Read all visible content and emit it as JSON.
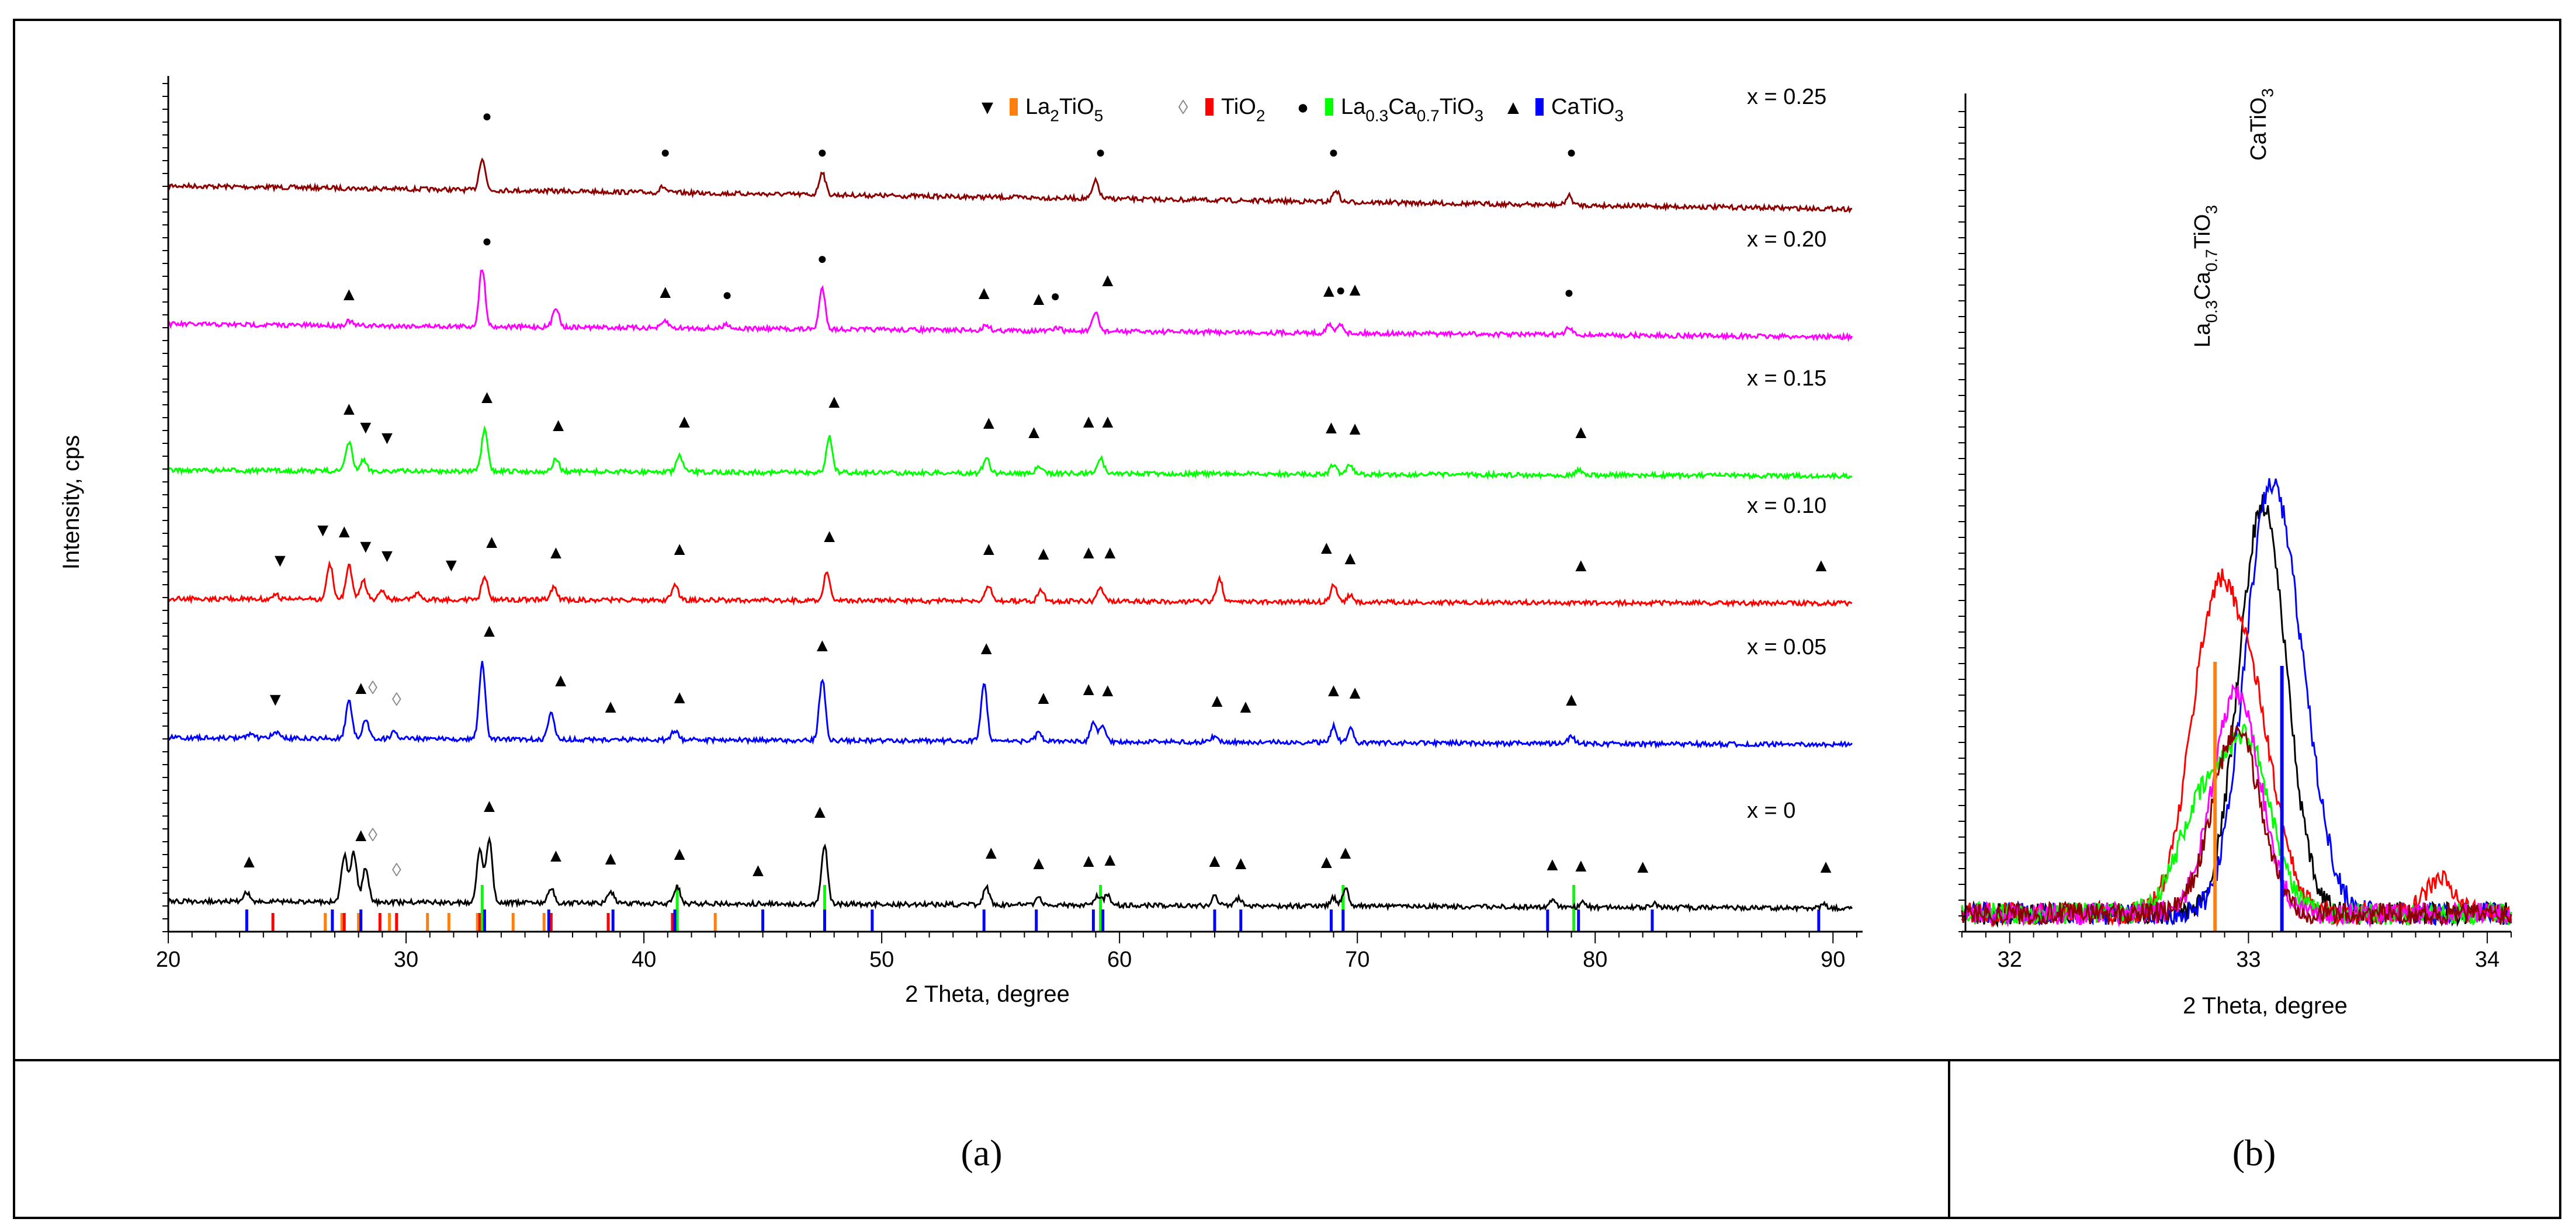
{
  "chart_data": [
    {
      "type": "line",
      "panel_caption": "(a)",
      "xlabel": "2 Theta, degree",
      "ylabel": "Intensity, cps",
      "xlim": [
        20,
        91
      ],
      "xticks": [
        20,
        30,
        40,
        50,
        60,
        70,
        80,
        90
      ],
      "legend": [
        {
          "symbol": "▼",
          "base": "La",
          "sub1": "2",
          "mid": "TiO",
          "sub2": "5",
          "tail": "",
          "sub3": "",
          "label": "La2TiO5",
          "color": "#ff7f0e"
        },
        {
          "symbol": "◊",
          "base": "TiO",
          "sub1": "2",
          "mid": "",
          "sub2": "",
          "tail": "",
          "sub3": "",
          "label": "TiO2",
          "color": "#ff0000"
        },
        {
          "symbol": "●",
          "base": "La",
          "sub1": "0.3",
          "mid": "Ca",
          "sub2": "0.7",
          "tail": "TiO",
          "sub3": "3",
          "label": "La0.3Ca0.7TiO3",
          "color": "#00ff00"
        },
        {
          "symbol": "▲",
          "base": "CaTiO",
          "sub1": "3",
          "mid": "",
          "sub2": "",
          "tail": "",
          "sub3": "",
          "label": "CaTiO3",
          "color": "#0000ff"
        }
      ],
      "series": [
        {
          "name": "x = 0.25",
          "color": "#8b0000",
          "peaks": [
            [
              33.2,
              55
            ],
            [
              40.8,
              10
            ],
            [
              47.5,
              40
            ],
            [
              59.0,
              30
            ],
            [
              69.1,
              20
            ],
            [
              78.9,
              16
            ]
          ]
        },
        {
          "name": "x = 0.20",
          "color": "#ff00ff",
          "peaks": [
            [
              27.6,
              8
            ],
            [
              33.2,
              100
            ],
            [
              36.3,
              35
            ],
            [
              40.9,
              12
            ],
            [
              43.5,
              8
            ],
            [
              47.5,
              70
            ],
            [
              54.4,
              10
            ],
            [
              57.4,
              6
            ],
            [
              59.0,
              32
            ],
            [
              68.8,
              14
            ],
            [
              69.3,
              16
            ],
            [
              78.9,
              12
            ]
          ]
        },
        {
          "name": "x = 0.15",
          "color": "#00ff00",
          "peaks": [
            [
              27.6,
              50
            ],
            [
              28.2,
              18
            ],
            [
              33.3,
              70
            ],
            [
              36.3,
              22
            ],
            [
              41.5,
              28
            ],
            [
              47.8,
              62
            ],
            [
              54.4,
              26
            ],
            [
              56.6,
              10
            ],
            [
              59.2,
              28
            ],
            [
              69.0,
              18
            ],
            [
              69.7,
              16
            ],
            [
              79.3,
              10
            ]
          ]
        },
        {
          "name": "x = 0.10",
          "color": "#ff0000",
          "peaks": [
            [
              24.5,
              8
            ],
            [
              26.8,
              60
            ],
            [
              27.6,
              58
            ],
            [
              28.2,
              32
            ],
            [
              29.0,
              16
            ],
            [
              30.5,
              10
            ],
            [
              33.3,
              40
            ],
            [
              36.2,
              22
            ],
            [
              41.3,
              28
            ],
            [
              47.7,
              50
            ],
            [
              54.5,
              28
            ],
            [
              56.7,
              20
            ],
            [
              59.2,
              22
            ],
            [
              64.2,
              40
            ],
            [
              69.0,
              30
            ],
            [
              69.7,
              12
            ]
          ]
        },
        {
          "name": "x = 0.05",
          "color": "#0000ff",
          "peaks": [
            [
              23.5,
              8
            ],
            [
              24.5,
              12
            ],
            [
              27.6,
              65
            ],
            [
              28.3,
              32
            ],
            [
              29.5,
              12
            ],
            [
              33.2,
              130
            ],
            [
              36.1,
              45
            ],
            [
              41.3,
              16
            ],
            [
              47.5,
              105
            ],
            [
              54.3,
              100
            ],
            [
              56.6,
              15
            ],
            [
              58.9,
              30
            ],
            [
              59.3,
              28
            ],
            [
              64.0,
              10
            ],
            [
              69.0,
              28
            ],
            [
              69.7,
              24
            ],
            [
              79.0,
              12
            ]
          ]
        },
        {
          "name": "x = 0",
          "color": "#000000",
          "peaks": [
            [
              23.3,
              15
            ],
            [
              27.4,
              80
            ],
            [
              27.8,
              85
            ],
            [
              28.3,
              60
            ],
            [
              33.1,
              90
            ],
            [
              33.5,
              110
            ],
            [
              36.1,
              25
            ],
            [
              38.6,
              20
            ],
            [
              41.4,
              28
            ],
            [
              47.6,
              100
            ],
            [
              54.4,
              30
            ],
            [
              56.6,
              12
            ],
            [
              59.1,
              16
            ],
            [
              59.5,
              18
            ],
            [
              64.0,
              16
            ],
            [
              65.0,
              12
            ],
            [
              69.0,
              14
            ],
            [
              69.5,
              30
            ],
            [
              78.2,
              10
            ],
            [
              79.5,
              8
            ],
            [
              82.5,
              6
            ],
            [
              89.6,
              6
            ]
          ]
        }
      ],
      "markers": [
        {
          "series": "x = 0.25",
          "points": [
            [
              "●",
              33.4
            ],
            [
              "●",
              40.9
            ],
            [
              "●",
              47.5
            ],
            [
              "●",
              59.2
            ],
            [
              "●",
              69.0
            ],
            [
              "●",
              79.0
            ]
          ]
        },
        {
          "series": "x = 0.20",
          "points": [
            [
              "▲",
              27.6
            ],
            [
              "●",
              33.4
            ],
            [
              "▲",
              40.9
            ],
            [
              "●",
              43.5
            ],
            [
              "●",
              47.5
            ],
            [
              "▲",
              54.3
            ],
            [
              "▲",
              56.6
            ],
            [
              "●",
              57.3
            ],
            [
              "▲",
              59.5
            ],
            [
              "▲",
              68.8
            ],
            [
              "●",
              69.3
            ],
            [
              "▲",
              69.9
            ],
            [
              "●",
              78.9
            ]
          ]
        },
        {
          "series": "x = 0.15",
          "points": [
            [
              "▲",
              27.6
            ],
            [
              "▼",
              28.3
            ],
            [
              "▼",
              29.2
            ],
            [
              "▲",
              33.4
            ],
            [
              "▲",
              36.4
            ],
            [
              "▲",
              41.7
            ],
            [
              "▲",
              48.0
            ],
            [
              "▲",
              54.5
            ],
            [
              "▲",
              56.4
            ],
            [
              "▲",
              58.7
            ],
            [
              "▲",
              59.5
            ],
            [
              "▲",
              68.9
            ],
            [
              "▲",
              69.9
            ],
            [
              "▲",
              79.4
            ]
          ]
        },
        {
          "series": "x = 0.10",
          "points": [
            [
              "▼",
              24.7
            ],
            [
              "▼",
              26.5
            ],
            [
              "▲",
              27.4
            ],
            [
              "▼",
              28.3
            ],
            [
              "▼",
              29.2
            ],
            [
              "▼",
              31.9
            ],
            [
              "▲",
              33.6
            ],
            [
              "▲",
              36.3
            ],
            [
              "▲",
              41.5
            ],
            [
              "▲",
              47.8
            ],
            [
              "▲",
              54.5
            ],
            [
              "▲",
              56.8
            ],
            [
              "▲",
              58.7
            ],
            [
              "▲",
              59.6
            ],
            [
              "▲",
              68.7
            ],
            [
              "▲",
              69.7
            ],
            [
              "▲",
              79.4
            ],
            [
              "▲",
              89.5
            ]
          ]
        },
        {
          "series": "x = 0.05",
          "points": [
            [
              "▼",
              24.5
            ],
            [
              "▲",
              28.1
            ],
            [
              "◊",
              28.6
            ],
            [
              "◊",
              29.6
            ],
            [
              "▲",
              33.5
            ],
            [
              "▲",
              36.5
            ],
            [
              "▲",
              38.6
            ],
            [
              "▲",
              41.5
            ],
            [
              "▲",
              47.5
            ],
            [
              "▲",
              54.4
            ],
            [
              "▲",
              56.8
            ],
            [
              "▲",
              58.7
            ],
            [
              "▲",
              59.5
            ],
            [
              "▲",
              64.1
            ],
            [
              "▲",
              65.3
            ],
            [
              "▲",
              69.0
            ],
            [
              "▲",
              69.9
            ],
            [
              "▲",
              79.0
            ]
          ]
        },
        {
          "series": "x = 0",
          "points": [
            [
              "▲",
              23.4
            ],
            [
              "▲",
              28.1
            ],
            [
              "◊",
              28.6
            ],
            [
              "◊",
              29.6
            ],
            [
              "▲",
              33.5
            ],
            [
              "▲",
              36.3
            ],
            [
              "▲",
              38.6
            ],
            [
              "▲",
              41.5
            ],
            [
              "▲",
              44.8
            ],
            [
              "▲",
              47.4
            ],
            [
              "▲",
              54.6
            ],
            [
              "▲",
              56.6
            ],
            [
              "▲",
              58.7
            ],
            [
              "▲",
              59.6
            ],
            [
              "▲",
              64.0
            ],
            [
              "▲",
              65.1
            ],
            [
              "▲",
              68.7
            ],
            [
              "▲",
              69.5
            ],
            [
              "▲",
              78.2
            ],
            [
              "▲",
              79.4
            ],
            [
              "▲",
              82.0
            ],
            [
              "▲",
              89.7
            ]
          ]
        }
      ],
      "reference_sticks": [
        {
          "phase": "La2TiO5",
          "color": "#ff7f0e",
          "positions": [
            26.6,
            27.3,
            28.0,
            29.3,
            30.9,
            31.8,
            33.0,
            34.5,
            35.8,
            43.0
          ]
        },
        {
          "phase": "TiO2",
          "color": "#ff0000",
          "positions": [
            24.4,
            27.4,
            28.9,
            29.6,
            33.1,
            36.1,
            38.5,
            41.2
          ]
        },
        {
          "phase": "La0.3Ca0.7TiO3",
          "color": "#00ff00",
          "positions": [
            33.2,
            41.4,
            47.6,
            59.2,
            69.4,
            79.1
          ]
        },
        {
          "phase": "CaTiO3",
          "color": "#0000ff",
          "positions": [
            23.3,
            26.9,
            28.1,
            33.3,
            36.0,
            38.7,
            41.3,
            45.0,
            47.6,
            49.6,
            54.3,
            56.5,
            58.9,
            59.3,
            64.0,
            65.1,
            68.9,
            69.4,
            78.0,
            79.3,
            82.4,
            89.4
          ]
        }
      ]
    },
    {
      "type": "line",
      "panel_caption": "(b)",
      "xlabel": "2 Theta, degree",
      "xlim": [
        31.8,
        34.1
      ],
      "xticks": [
        32,
        33,
        34
      ],
      "annotations": [
        {
          "base": "La",
          "sub1": "0.3",
          "mid": "Ca",
          "sub2": "0.7",
          "tail": "TiO",
          "sub3": "3",
          "label": "La0.3Ca0.7TiO3",
          "x": 32.85
        },
        {
          "base": "CaTiO",
          "sub1": "3",
          "mid": "",
          "sub2": "",
          "tail": "",
          "sub3": "",
          "label": "CaTiO3",
          "x": 33.06
        }
      ],
      "series": [
        {
          "name": "x = 0",
          "color": "#000000",
          "peaks": [
            [
              33.06,
              100
            ]
          ]
        },
        {
          "name": "x = 0.05",
          "color": "#0000ff",
          "peaks": [
            [
              33.07,
              85
            ],
            [
              33.2,
              40
            ]
          ]
        },
        {
          "name": "x = 0.10",
          "color": "#ff0000",
          "peaks": [
            [
              32.85,
              68
            ],
            [
              33.02,
              45
            ]
          ]
        },
        {
          "name": "x = 0.15",
          "color": "#00ff00",
          "peaks": [
            [
              32.8,
              25
            ],
            [
              33.0,
              40
            ]
          ]
        },
        {
          "name": "x = 0.20",
          "color": "#ff00ff",
          "peaks": [
            [
              32.95,
              54
            ]
          ]
        },
        {
          "name": "x = 0.25",
          "color": "#8b0000",
          "peaks": [
            [
              32.95,
              45
            ]
          ]
        }
      ],
      "reference_sticks": [
        {
          "phase": "La0.3Ca0.7TiO3",
          "color": "#ff7f0e",
          "positions": [
            32.86
          ],
          "height": 66
        },
        {
          "phase": "CaTiO3",
          "color": "#0000ff",
          "positions": [
            33.14
          ],
          "height": 65
        }
      ]
    }
  ]
}
